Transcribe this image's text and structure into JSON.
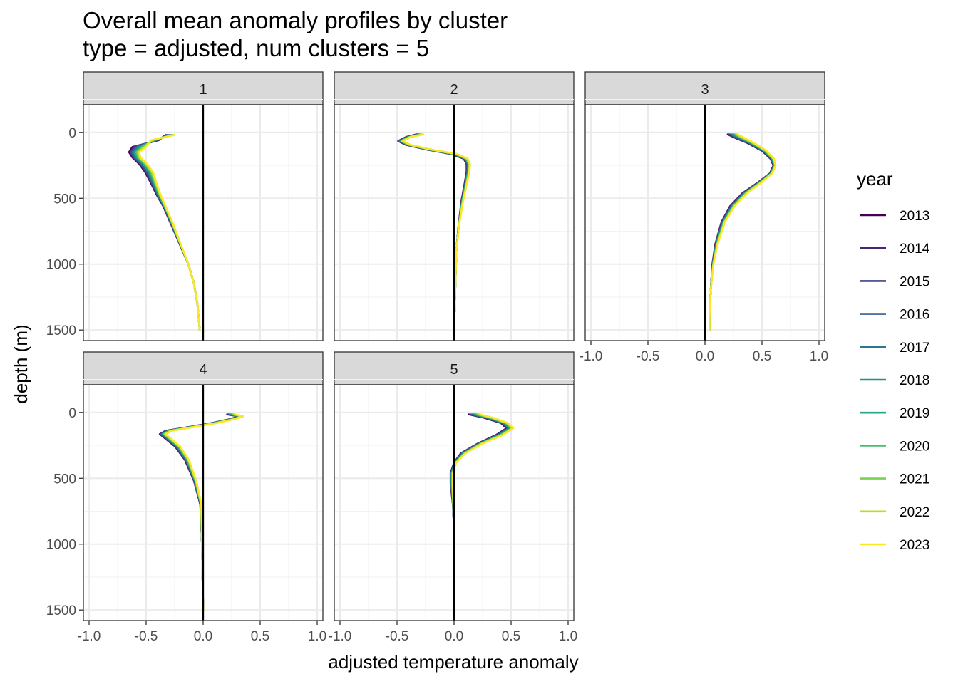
{
  "title_line1": "Overall mean anomaly profiles by cluster",
  "title_line2": "type = adjusted, num clusters = 5",
  "xlabel": "adjusted temperature anomaly",
  "ylabel": "depth (m)",
  "legend_title": "year",
  "chart_data": {
    "type": "line",
    "layout": "facet grid, 2 rows x 3 columns, free vertical lines, shared axes",
    "orientation": "vertical profiles (x = anomaly, y = depth, depth increasing downward)",
    "xlim": [
      -1.05,
      1.05
    ],
    "ylim": [
      1580,
      -210
    ],
    "x_ticks": [
      -1.0,
      -0.5,
      0.0,
      0.5,
      1.0
    ],
    "x_tick_labels": [
      "-1.0",
      "-0.5",
      "0.0",
      "0.5",
      "1.0"
    ],
    "y_ticks": [
      0,
      500,
      1000,
      1500
    ],
    "y_tick_labels": [
      "0",
      "500",
      "1000",
      "1500"
    ],
    "grid": true,
    "reference_line_x": 0,
    "legend_position": "right",
    "series": [
      {
        "name": "2013",
        "color": "#440154"
      },
      {
        "name": "2014",
        "color": "#482576"
      },
      {
        "name": "2015",
        "color": "#414487"
      },
      {
        "name": "2016",
        "color": "#35608D"
      },
      {
        "name": "2017",
        "color": "#2A788E"
      },
      {
        "name": "2018",
        "color": "#21908C"
      },
      {
        "name": "2019",
        "color": "#22A884"
      },
      {
        "name": "2020",
        "color": "#43BF71"
      },
      {
        "name": "2021",
        "color": "#7AD151"
      },
      {
        "name": "2022",
        "color": "#BBDF27"
      },
      {
        "name": "2023",
        "color": "#FDE725"
      }
    ],
    "facets": [
      {
        "label": "1",
        "col": 0,
        "row": 0,
        "show_x_axis": false,
        "show_y_axis": true,
        "profile": [
          [
            -0.3,
            20
          ],
          [
            -0.42,
            60
          ],
          [
            -0.55,
            110
          ],
          [
            -0.6,
            150
          ],
          [
            -0.58,
            190
          ],
          [
            -0.52,
            240
          ],
          [
            -0.47,
            300
          ],
          [
            -0.43,
            380
          ],
          [
            -0.39,
            470
          ],
          [
            -0.34,
            560
          ],
          [
            -0.28,
            680
          ],
          [
            -0.2,
            850
          ],
          [
            -0.13,
            1000
          ],
          [
            -0.08,
            1150
          ],
          [
            -0.05,
            1300
          ],
          [
            -0.03,
            1500
          ]
        ],
        "spread": [
          [
            -0.03,
            0.05
          ],
          [
            0.03,
            -0.04
          ],
          [
            -0.07,
            0.05
          ],
          [
            -0.05,
            0.04
          ],
          [
            -0.04,
            0.03
          ],
          [
            -0.04,
            0.03
          ],
          [
            -0.04,
            0.03
          ],
          [
            -0.03,
            0.02
          ],
          [
            -0.02,
            0.015
          ],
          [
            -0.01,
            0.01
          ],
          [
            -0.01,
            0.01
          ],
          [
            -0.005,
            0.005
          ],
          [
            0,
            0
          ],
          [
            0,
            0
          ],
          [
            0,
            0
          ],
          [
            0,
            0
          ]
        ]
      },
      {
        "label": "2",
        "col": 1,
        "row": 0,
        "show_x_axis": false,
        "show_y_axis": false,
        "profile": [
          [
            -0.3,
            15
          ],
          [
            -0.4,
            35
          ],
          [
            -0.47,
            65
          ],
          [
            -0.4,
            95
          ],
          [
            -0.22,
            130
          ],
          [
            0.0,
            165
          ],
          [
            0.1,
            200
          ],
          [
            0.12,
            240
          ],
          [
            0.12,
            300
          ],
          [
            0.1,
            400
          ],
          [
            0.07,
            520
          ],
          [
            0.04,
            700
          ],
          [
            0.02,
            900
          ],
          [
            0.01,
            1200
          ],
          [
            0.0,
            1500
          ]
        ],
        "spread": [
          [
            -0.03,
            0.03
          ],
          [
            -0.02,
            0.02
          ],
          [
            -0.02,
            0.02
          ],
          [
            -0.02,
            0.02
          ],
          [
            -0.02,
            0.02
          ],
          [
            -0.02,
            0.03
          ],
          [
            -0.015,
            0.02
          ],
          [
            -0.01,
            0.02
          ],
          [
            -0.01,
            0.015
          ],
          [
            -0.01,
            0.01
          ],
          [
            -0.005,
            0.01
          ],
          [
            0,
            0.005
          ],
          [
            0,
            0
          ],
          [
            0,
            0
          ],
          [
            0,
            0
          ]
        ]
      },
      {
        "label": "3",
        "col": 2,
        "row": 0,
        "show_x_axis": true,
        "show_y_axis": false,
        "profile": [
          [
            0.24,
            15
          ],
          [
            0.3,
            40
          ],
          [
            0.4,
            80
          ],
          [
            0.52,
            140
          ],
          [
            0.59,
            200
          ],
          [
            0.61,
            250
          ],
          [
            0.58,
            310
          ],
          [
            0.48,
            380
          ],
          [
            0.35,
            460
          ],
          [
            0.24,
            560
          ],
          [
            0.16,
            680
          ],
          [
            0.1,
            850
          ],
          [
            0.07,
            1000
          ],
          [
            0.05,
            1200
          ],
          [
            0.04,
            1400
          ],
          [
            0.04,
            1500
          ]
        ],
        "spread": [
          [
            -0.04,
            0.05
          ],
          [
            -0.04,
            0.04
          ],
          [
            -0.03,
            0.03
          ],
          [
            -0.02,
            0.02
          ],
          [
            -0.015,
            0.015
          ],
          [
            -0.01,
            0.01
          ],
          [
            -0.01,
            0.01
          ],
          [
            -0.015,
            0.015
          ],
          [
            -0.02,
            0.02
          ],
          [
            -0.02,
            0.02
          ],
          [
            -0.015,
            0.015
          ],
          [
            -0.01,
            0.01
          ],
          [
            -0.005,
            0.005
          ],
          [
            0,
            0
          ],
          [
            0,
            0
          ],
          [
            0,
            0
          ]
        ]
      },
      {
        "label": "4",
        "col": 0,
        "row": 1,
        "show_x_axis": true,
        "show_y_axis": true,
        "profile": [
          [
            0.24,
            15
          ],
          [
            0.33,
            30
          ],
          [
            0.26,
            50
          ],
          [
            0.1,
            80
          ],
          [
            -0.1,
            110
          ],
          [
            -0.3,
            140
          ],
          [
            -0.35,
            165
          ],
          [
            -0.3,
            200
          ],
          [
            -0.22,
            260
          ],
          [
            -0.14,
            360
          ],
          [
            -0.07,
            520
          ],
          [
            -0.02,
            700
          ],
          [
            -0.01,
            1000
          ],
          [
            0.0,
            1500
          ]
        ],
        "spread": [
          [
            -0.03,
            0.04
          ],
          [
            -0.02,
            0.02
          ],
          [
            -0.02,
            0.02
          ],
          [
            -0.02,
            0.02
          ],
          [
            -0.02,
            0.02
          ],
          [
            -0.03,
            0.02
          ],
          [
            -0.03,
            0.02
          ],
          [
            -0.03,
            0.02
          ],
          [
            -0.025,
            0.02
          ],
          [
            -0.02,
            0.015
          ],
          [
            -0.01,
            0.01
          ],
          [
            -0.005,
            0.005
          ],
          [
            0,
            0
          ],
          [
            0,
            0
          ]
        ]
      },
      {
        "label": "5",
        "col": 1,
        "row": 1,
        "show_x_axis": true,
        "show_y_axis": false,
        "profile": [
          [
            0.18,
            15
          ],
          [
            0.3,
            40
          ],
          [
            0.44,
            80
          ],
          [
            0.49,
            120
          ],
          [
            0.4,
            170
          ],
          [
            0.22,
            240
          ],
          [
            0.08,
            310
          ],
          [
            0.01,
            380
          ],
          [
            -0.02,
            460
          ],
          [
            -0.02,
            550
          ],
          [
            -0.01,
            700
          ],
          [
            0.0,
            900
          ],
          [
            0.0,
            1200
          ],
          [
            0.0,
            1500
          ]
        ],
        "spread": [
          [
            -0.05,
            0.05
          ],
          [
            -0.04,
            0.04
          ],
          [
            -0.03,
            0.03
          ],
          [
            -0.03,
            0.03
          ],
          [
            -0.03,
            0.03
          ],
          [
            -0.02,
            0.02
          ],
          [
            -0.02,
            0.02
          ],
          [
            -0.01,
            0.01
          ],
          [
            -0.01,
            0.01
          ],
          [
            -0.01,
            0.01
          ],
          [
            0,
            0.005
          ],
          [
            0,
            0
          ],
          [
            0,
            0
          ],
          [
            0,
            0
          ]
        ]
      }
    ]
  }
}
